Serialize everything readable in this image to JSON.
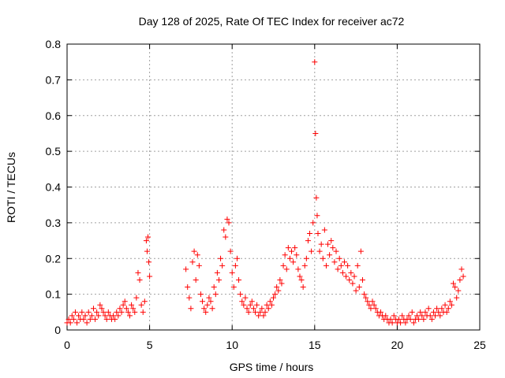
{
  "chart_data": {
    "type": "scatter",
    "title": "Day 128 of 2025, Rate Of TEC Index for receiver ac72",
    "xlabel": "GPS time / hours",
    "ylabel": "ROTI / TECUs",
    "xlim": [
      0,
      25
    ],
    "ylim": [
      0,
      0.8
    ],
    "xticks": [
      0,
      5,
      10,
      15,
      20,
      25
    ],
    "xtick_labels": [
      "0",
      "5",
      "10",
      "15",
      "20",
      "25"
    ],
    "yticks": [
      0,
      0.1,
      0.2,
      0.3,
      0.4,
      0.5,
      0.6,
      0.7,
      0.8
    ],
    "ytick_labels": [
      "0",
      "0.1",
      "0.2",
      "0.3",
      "0.4",
      "0.5",
      "0.6",
      "0.7",
      "0.8"
    ],
    "grid": true,
    "marker": "plus",
    "color": "#ff0000",
    "series": [
      {
        "points": [
          [
            0.0,
            0.02
          ],
          [
            0.1,
            0.03
          ],
          [
            0.2,
            0.02
          ],
          [
            0.3,
            0.04
          ],
          [
            0.4,
            0.03
          ],
          [
            0.5,
            0.05
          ],
          [
            0.6,
            0.02
          ],
          [
            0.7,
            0.04
          ],
          [
            0.8,
            0.03
          ],
          [
            0.9,
            0.05
          ],
          [
            1.0,
            0.03
          ],
          [
            1.1,
            0.04
          ],
          [
            1.2,
            0.02
          ],
          [
            1.3,
            0.05
          ],
          [
            1.4,
            0.03
          ],
          [
            1.5,
            0.04
          ],
          [
            1.6,
            0.06
          ],
          [
            1.7,
            0.03
          ],
          [
            1.8,
            0.05
          ],
          [
            1.9,
            0.04
          ],
          [
            2.0,
            0.07
          ],
          [
            2.1,
            0.06
          ],
          [
            2.2,
            0.05
          ],
          [
            2.3,
            0.04
          ],
          [
            2.4,
            0.03
          ],
          [
            2.5,
            0.05
          ],
          [
            2.6,
            0.04
          ],
          [
            2.7,
            0.03
          ],
          [
            2.8,
            0.04
          ],
          [
            2.9,
            0.03
          ],
          [
            3.0,
            0.05
          ],
          [
            3.1,
            0.04
          ],
          [
            3.2,
            0.06
          ],
          [
            3.3,
            0.05
          ],
          [
            3.4,
            0.07
          ],
          [
            3.5,
            0.08
          ],
          [
            3.6,
            0.06
          ],
          [
            3.7,
            0.05
          ],
          [
            3.8,
            0.04
          ],
          [
            3.9,
            0.07
          ],
          [
            4.0,
            0.06
          ],
          [
            4.1,
            0.05
          ],
          [
            4.2,
            0.09
          ],
          [
            4.3,
            0.16
          ],
          [
            4.4,
            0.14
          ],
          [
            4.5,
            0.07
          ],
          [
            4.6,
            0.05
          ],
          [
            4.7,
            0.08
          ],
          [
            4.8,
            0.25
          ],
          [
            4.85,
            0.22
          ],
          [
            4.9,
            0.26
          ],
          [
            4.95,
            0.19
          ],
          [
            5.0,
            0.15
          ],
          [
            7.2,
            0.17
          ],
          [
            7.3,
            0.12
          ],
          [
            7.4,
            0.09
          ],
          [
            7.5,
            0.06
          ],
          [
            7.6,
            0.19
          ],
          [
            7.7,
            0.22
          ],
          [
            7.8,
            0.14
          ],
          [
            7.9,
            0.21
          ],
          [
            8.0,
            0.18
          ],
          [
            8.1,
            0.1
          ],
          [
            8.2,
            0.08
          ],
          [
            8.3,
            0.06
          ],
          [
            8.4,
            0.05
          ],
          [
            8.5,
            0.07
          ],
          [
            8.6,
            0.09
          ],
          [
            8.7,
            0.08
          ],
          [
            8.8,
            0.06
          ],
          [
            8.9,
            0.12
          ],
          [
            9.0,
            0.1
          ],
          [
            9.1,
            0.16
          ],
          [
            9.2,
            0.14
          ],
          [
            9.3,
            0.2
          ],
          [
            9.4,
            0.18
          ],
          [
            9.5,
            0.28
          ],
          [
            9.6,
            0.26
          ],
          [
            9.7,
            0.31
          ],
          [
            9.8,
            0.3
          ],
          [
            9.9,
            0.22
          ],
          [
            10.0,
            0.16
          ],
          [
            10.1,
            0.12
          ],
          [
            10.2,
            0.18
          ],
          [
            10.3,
            0.2
          ],
          [
            10.4,
            0.14
          ],
          [
            10.5,
            0.1
          ],
          [
            10.6,
            0.08
          ],
          [
            10.7,
            0.07
          ],
          [
            10.8,
            0.09
          ],
          [
            10.9,
            0.06
          ],
          [
            11.0,
            0.05
          ],
          [
            11.1,
            0.07
          ],
          [
            11.2,
            0.08
          ],
          [
            11.3,
            0.06
          ],
          [
            11.4,
            0.05
          ],
          [
            11.5,
            0.07
          ],
          [
            11.6,
            0.04
          ],
          [
            11.7,
            0.05
          ],
          [
            11.8,
            0.06
          ],
          [
            11.9,
            0.04
          ],
          [
            12.0,
            0.05
          ],
          [
            12.1,
            0.07
          ],
          [
            12.2,
            0.06
          ],
          [
            12.3,
            0.08
          ],
          [
            12.4,
            0.07
          ],
          [
            12.5,
            0.09
          ],
          [
            12.6,
            0.1
          ],
          [
            12.7,
            0.12
          ],
          [
            12.8,
            0.11
          ],
          [
            12.9,
            0.14
          ],
          [
            13.0,
            0.13
          ],
          [
            13.1,
            0.18
          ],
          [
            13.2,
            0.21
          ],
          [
            13.3,
            0.17
          ],
          [
            13.4,
            0.23
          ],
          [
            13.5,
            0.2
          ],
          [
            13.6,
            0.22
          ],
          [
            13.7,
            0.19
          ],
          [
            13.8,
            0.23
          ],
          [
            13.9,
            0.21
          ],
          [
            14.0,
            0.17
          ],
          [
            14.1,
            0.15
          ],
          [
            14.2,
            0.14
          ],
          [
            14.3,
            0.12
          ],
          [
            14.4,
            0.18
          ],
          [
            14.5,
            0.2
          ],
          [
            14.6,
            0.25
          ],
          [
            14.7,
            0.27
          ],
          [
            14.8,
            0.22
          ],
          [
            14.9,
            0.3
          ],
          [
            15.0,
            0.75
          ],
          [
            15.05,
            0.55
          ],
          [
            15.1,
            0.37
          ],
          [
            15.15,
            0.32
          ],
          [
            15.2,
            0.27
          ],
          [
            15.3,
            0.22
          ],
          [
            15.4,
            0.24
          ],
          [
            15.5,
            0.2
          ],
          [
            15.6,
            0.28
          ],
          [
            15.7,
            0.18
          ],
          [
            15.8,
            0.24
          ],
          [
            15.9,
            0.21
          ],
          [
            16.0,
            0.25
          ],
          [
            16.1,
            0.23
          ],
          [
            16.2,
            0.19
          ],
          [
            16.3,
            0.22
          ],
          [
            16.4,
            0.17
          ],
          [
            16.5,
            0.2
          ],
          [
            16.6,
            0.18
          ],
          [
            16.7,
            0.16
          ],
          [
            16.8,
            0.19
          ],
          [
            16.9,
            0.15
          ],
          [
            17.0,
            0.18
          ],
          [
            17.1,
            0.14
          ],
          [
            17.2,
            0.16
          ],
          [
            17.3,
            0.13
          ],
          [
            17.4,
            0.15
          ],
          [
            17.5,
            0.11
          ],
          [
            17.6,
            0.18
          ],
          [
            17.7,
            0.12
          ],
          [
            17.8,
            0.22
          ],
          [
            17.9,
            0.14
          ],
          [
            18.0,
            0.1
          ],
          [
            18.1,
            0.09
          ],
          [
            18.2,
            0.08
          ],
          [
            18.3,
            0.07
          ],
          [
            18.4,
            0.06
          ],
          [
            18.5,
            0.08
          ],
          [
            18.6,
            0.07
          ],
          [
            18.7,
            0.06
          ],
          [
            18.8,
            0.05
          ],
          [
            18.9,
            0.04
          ],
          [
            19.0,
            0.05
          ],
          [
            19.1,
            0.04
          ],
          [
            19.2,
            0.03
          ],
          [
            19.3,
            0.04
          ],
          [
            19.4,
            0.03
          ],
          [
            19.5,
            0.02
          ],
          [
            19.6,
            0.03
          ],
          [
            19.7,
            0.02
          ],
          [
            19.8,
            0.04
          ],
          [
            19.9,
            0.03
          ],
          [
            20.0,
            0.02
          ],
          [
            20.1,
            0.03
          ],
          [
            20.2,
            0.02
          ],
          [
            20.3,
            0.04
          ],
          [
            20.4,
            0.03
          ],
          [
            20.5,
            0.02
          ],
          [
            20.6,
            0.03
          ],
          [
            20.7,
            0.04
          ],
          [
            20.8,
            0.03
          ],
          [
            20.9,
            0.05
          ],
          [
            21.0,
            0.02
          ],
          [
            21.1,
            0.03
          ],
          [
            21.2,
            0.04
          ],
          [
            21.3,
            0.03
          ],
          [
            21.4,
            0.05
          ],
          [
            21.5,
            0.04
          ],
          [
            21.6,
            0.03
          ],
          [
            21.7,
            0.05
          ],
          [
            21.8,
            0.04
          ],
          [
            21.9,
            0.06
          ],
          [
            22.0,
            0.04
          ],
          [
            22.1,
            0.03
          ],
          [
            22.2,
            0.05
          ],
          [
            22.3,
            0.04
          ],
          [
            22.4,
            0.06
          ],
          [
            22.5,
            0.05
          ],
          [
            22.6,
            0.04
          ],
          [
            22.7,
            0.06
          ],
          [
            22.8,
            0.05
          ],
          [
            22.9,
            0.07
          ],
          [
            23.0,
            0.05
          ],
          [
            23.1,
            0.06
          ],
          [
            23.2,
            0.08
          ],
          [
            23.3,
            0.07
          ],
          [
            23.4,
            0.13
          ],
          [
            23.5,
            0.12
          ],
          [
            23.6,
            0.09
          ],
          [
            23.7,
            0.11
          ],
          [
            23.8,
            0.14
          ],
          [
            23.9,
            0.17
          ],
          [
            24.0,
            0.15
          ]
        ]
      }
    ]
  }
}
